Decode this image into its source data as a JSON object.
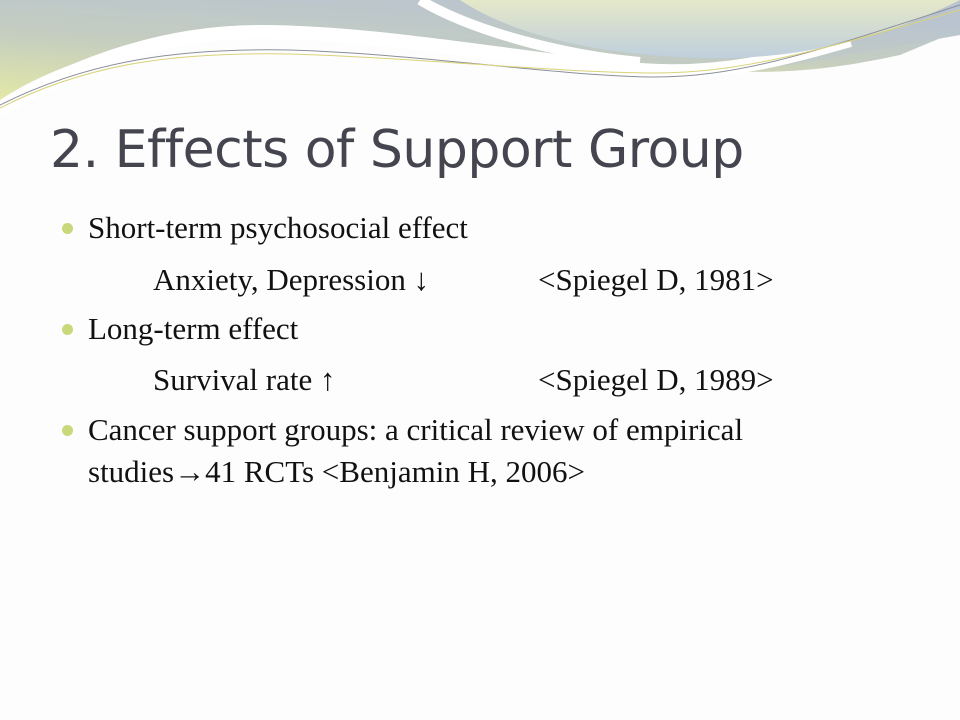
{
  "slide": {
    "title": "2. Effects of Support Group",
    "bullets": [
      {
        "text": "Short-term psychosocial effect",
        "sub": {
          "text": "Anxiety, Depression ↓",
          "citation": "<Spiegel D, 1981>"
        }
      },
      {
        "text": "Long-term effect",
        "sub": {
          "text": "Survival rate  ↑",
          "citation": "<Spiegel D, 1989>"
        }
      },
      {
        "text": "Cancer support groups: a critical review of empirical",
        "text_line2": "studies→41 RCTs <Benjamin H, 2006>"
      }
    ]
  },
  "colors": {
    "bullet": "#c9d87a",
    "title": "#45454f",
    "wave_blue": "#b9c6d2",
    "wave_green": "#dfe6a8"
  }
}
